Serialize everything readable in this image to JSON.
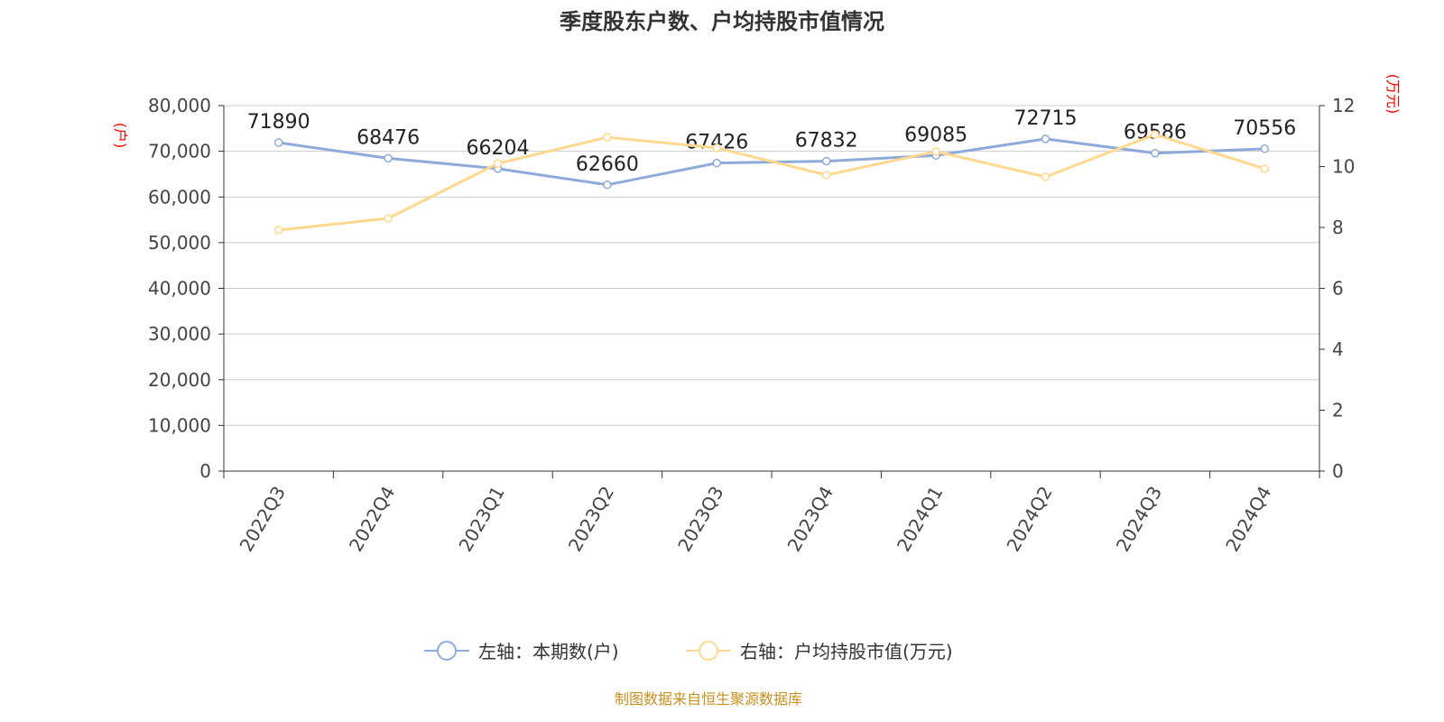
{
  "chart_data": {
    "type": "line",
    "title": "季度股东户数、户均持股市值情况",
    "categories": [
      "2022Q3",
      "2022Q4",
      "2023Q1",
      "2023Q2",
      "2023Q3",
      "2023Q4",
      "2024Q1",
      "2024Q2",
      "2024Q3",
      "2024Q4"
    ],
    "series": [
      {
        "name": "左轴：本期数(户)",
        "axis": "left",
        "color": "#8eaadb",
        "values": [
          71890,
          68476,
          66204,
          62660,
          67426,
          67832,
          69085,
          72715,
          69586,
          70556
        ],
        "labels_shown": true
      },
      {
        "name": "右轴：户均持股市值(万元)",
        "axis": "right",
        "color": "#ffd88f",
        "values": [
          7.91,
          8.3,
          10.1,
          10.96,
          10.61,
          9.72,
          10.49,
          9.66,
          11.05,
          9.93
        ],
        "labels_shown": false
      }
    ],
    "left_axis": {
      "label": "(户)",
      "ylim": [
        0,
        80000
      ],
      "ticks": [
        "0",
        "10,000",
        "20,000",
        "30,000",
        "40,000",
        "50,000",
        "60,000",
        "70,000",
        "80,000"
      ]
    },
    "right_axis": {
      "label": "(万元)",
      "ylim": [
        0,
        12
      ],
      "ticks": [
        "0",
        "2",
        "4",
        "6",
        "8",
        "10",
        "12"
      ]
    },
    "grid": true,
    "legend_position": "bottom",
    "source": "制图数据来自恒生聚源数据库"
  }
}
